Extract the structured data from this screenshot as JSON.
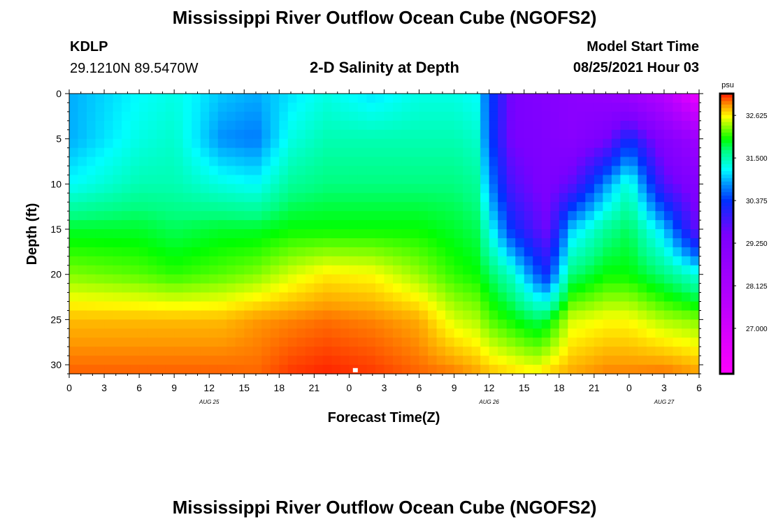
{
  "page": {
    "title_top": "Mississippi River Outflow Ocean Cube (NGOFS2)",
    "title_bottom": "Mississippi River Outflow Ocean Cube (NGOFS2)",
    "station_id": "KDLP",
    "station_coords": "29.1210N  89.5470W",
    "chart_subtitle": "2-D Salinity at Depth",
    "model_start_label": "Model Start Time",
    "model_start_value": "08/25/2021 Hour 03"
  },
  "chart_data": {
    "type": "heatmap",
    "title": "2-D Salinity at Depth",
    "xlabel": "Forecast Time(Z)",
    "ylabel": "Depth (ft)",
    "x_unit": "forecast hours from 2021-08-25 00Z",
    "x_range": [
      0,
      54
    ],
    "y_range": [
      0,
      31
    ],
    "y_inverted": true,
    "x_ticks": [
      0,
      3,
      6,
      9,
      12,
      15,
      18,
      21,
      24,
      27,
      30,
      33,
      36,
      39,
      42,
      45,
      48,
      51,
      54
    ],
    "x_tick_labels": [
      "0",
      "3",
      "6",
      "9",
      "12",
      "15",
      "18",
      "21",
      "0",
      "3",
      "6",
      "9",
      "12",
      "15",
      "18",
      "21",
      "0",
      "3",
      "6"
    ],
    "date_labels": [
      {
        "hour": 12,
        "text": "AUG 25"
      },
      {
        "hour": 36,
        "text": "AUG 26"
      },
      {
        "hour": 51,
        "text": "AUG 27"
      }
    ],
    "y_ticks": [
      0,
      5,
      10,
      15,
      20,
      25,
      30
    ],
    "y_tick_labels": [
      "0",
      "5",
      "10",
      "15",
      "20",
      "25",
      "30"
    ],
    "colorbar": {
      "unit": "psu",
      "min": 25.8,
      "max": 33.2,
      "tick_values": [
        32.625,
        31.5,
        30.375,
        29.25,
        28.125,
        27.0
      ],
      "tick_labels": [
        "32.625",
        "31.500",
        "30.375",
        "29.250",
        "28.125",
        "27.000"
      ],
      "color_stops": [
        {
          "value": 25.8,
          "color": "#ff00ff"
        },
        {
          "value": 27.5,
          "color": "#c000ff"
        },
        {
          "value": 29.5,
          "color": "#7a00ff"
        },
        {
          "value": 30.375,
          "color": "#0030ff"
        },
        {
          "value": 30.8,
          "color": "#0090ff"
        },
        {
          "value": 31.2,
          "color": "#00ffff"
        },
        {
          "value": 31.7,
          "color": "#00ff80"
        },
        {
          "value": 32.0,
          "color": "#00ff00"
        },
        {
          "value": 32.3,
          "color": "#80ff00"
        },
        {
          "value": 32.6,
          "color": "#ffff00"
        },
        {
          "value": 32.9,
          "color": "#ff9a00"
        },
        {
          "value": 33.2,
          "color": "#ff1a00"
        }
      ]
    },
    "profiles": {
      "depths": [
        0,
        5,
        10,
        15,
        20,
        25,
        30
      ],
      "rows": [
        {
          "hour": 0,
          "salinity": [
            30.9,
            30.9,
            31.2,
            31.9,
            32.3,
            32.8,
            33.0
          ]
        },
        {
          "hour": 6,
          "salinity": [
            31.2,
            31.3,
            31.5,
            31.9,
            32.2,
            32.8,
            33.0
          ]
        },
        {
          "hour": 9,
          "salinity": [
            31.3,
            31.4,
            31.5,
            31.8,
            32.1,
            32.8,
            33.0
          ]
        },
        {
          "hour": 13,
          "salinity": [
            31.0,
            30.8,
            31.3,
            31.9,
            32.2,
            32.8,
            33.0
          ]
        },
        {
          "hour": 16,
          "salinity": [
            30.9,
            30.7,
            31.2,
            31.9,
            32.3,
            32.9,
            33.0
          ]
        },
        {
          "hour": 19,
          "salinity": [
            31.1,
            31.3,
            31.6,
            32.0,
            32.5,
            32.95,
            33.1
          ]
        },
        {
          "hour": 22,
          "salinity": [
            31.3,
            31.5,
            31.7,
            32.0,
            32.65,
            33.0,
            33.15
          ]
        },
        {
          "hour": 26,
          "salinity": [
            31.1,
            31.5,
            31.7,
            32.0,
            32.6,
            32.95,
            33.1
          ]
        },
        {
          "hour": 30,
          "salinity": [
            31.3,
            31.5,
            31.7,
            32.0,
            32.35,
            32.85,
            33.0
          ]
        },
        {
          "hour": 33,
          "salinity": [
            31.3,
            31.5,
            31.7,
            31.9,
            32.1,
            32.5,
            32.9
          ]
        },
        {
          "hour": 35,
          "salinity": [
            31.2,
            31.4,
            31.6,
            31.8,
            32.0,
            32.4,
            32.8
          ]
        },
        {
          "hour": 36,
          "salinity": [
            30.5,
            30.5,
            30.8,
            31.3,
            31.8,
            32.2,
            32.7
          ]
        },
        {
          "hour": 38,
          "salinity": [
            29.5,
            29.5,
            29.8,
            30.3,
            31.4,
            32.0,
            32.6
          ]
        },
        {
          "hour": 40,
          "salinity": [
            29.3,
            29.4,
            29.5,
            29.8,
            30.6,
            31.8,
            32.5
          ]
        },
        {
          "hour": 41,
          "salinity": [
            29.2,
            29.3,
            29.4,
            29.6,
            30.3,
            31.9,
            32.6
          ]
        },
        {
          "hour": 43,
          "salinity": [
            29.0,
            29.1,
            29.7,
            31.0,
            31.7,
            32.5,
            32.8
          ]
        },
        {
          "hour": 46,
          "salinity": [
            28.8,
            29.5,
            30.8,
            31.6,
            32.0,
            32.6,
            32.9
          ]
        },
        {
          "hour": 48,
          "salinity": [
            28.5,
            30.3,
            31.4,
            31.8,
            32.0,
            32.6,
            32.9
          ]
        },
        {
          "hour": 51,
          "salinity": [
            27.8,
            29.2,
            29.8,
            31.0,
            31.7,
            32.4,
            32.9
          ]
        },
        {
          "hour": 54,
          "salinity": [
            26.2,
            28.5,
            29.2,
            29.6,
            31.3,
            32.3,
            32.8
          ]
        }
      ]
    },
    "marker": {
      "hour": 24.5,
      "depth": 30.6,
      "color": "#ffffff"
    }
  }
}
